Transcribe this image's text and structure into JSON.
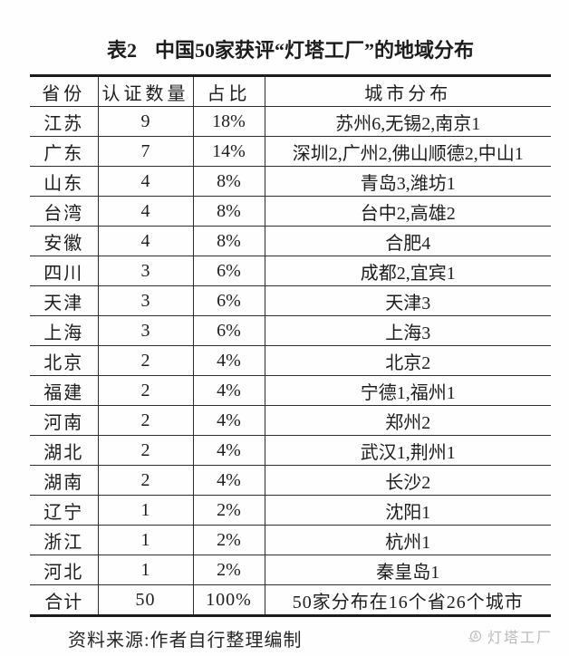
{
  "title": {
    "label": "表2",
    "text": "中国50家获评“灯塔工厂”的地域分布"
  },
  "table": {
    "headers": [
      "省份",
      "认证数量",
      "占比",
      "城市分布"
    ],
    "rows": [
      [
        "江苏",
        "9",
        "18%",
        "苏州6,无锡2,南京1"
      ],
      [
        "广东",
        "7",
        "14%",
        "深圳2,广州2,佛山顺德2,中山1"
      ],
      [
        "山东",
        "4",
        "8%",
        "青岛3,潍坊1"
      ],
      [
        "台湾",
        "4",
        "8%",
        "台中2,高雄2"
      ],
      [
        "安徽",
        "4",
        "8%",
        "合肥4"
      ],
      [
        "四川",
        "3",
        "6%",
        "成都2,宜宾1"
      ],
      [
        "天津",
        "3",
        "6%",
        "天津3"
      ],
      [
        "上海",
        "3",
        "6%",
        "上海3"
      ],
      [
        "北京",
        "2",
        "4%",
        "北京2"
      ],
      [
        "福建",
        "2",
        "4%",
        "宁德1,福州1"
      ],
      [
        "河南",
        "2",
        "4%",
        "郑州2"
      ],
      [
        "湖北",
        "2",
        "4%",
        "武汉1,荆州1"
      ],
      [
        "湖南",
        "2",
        "4%",
        "长沙2"
      ],
      [
        "辽宁",
        "1",
        "2%",
        "沈阳1"
      ],
      [
        "浙江",
        "1",
        "2%",
        "杭州1"
      ],
      [
        "河北",
        "1",
        "2%",
        "秦皇岛1"
      ]
    ],
    "total_row": [
      "合计",
      "50",
      "100%",
      "50家分布在16个省26个城市"
    ]
  },
  "footer": {
    "source": "资料来源:作者自行整理编制"
  },
  "watermark": {
    "label": "灯塔工厂",
    "icon": "lighthouse-logo-icon"
  },
  "colors": {
    "text": "#1d1d1d",
    "line": "#2e2e2e",
    "watermark": "#b9b9b9",
    "background": "#fefefe"
  }
}
